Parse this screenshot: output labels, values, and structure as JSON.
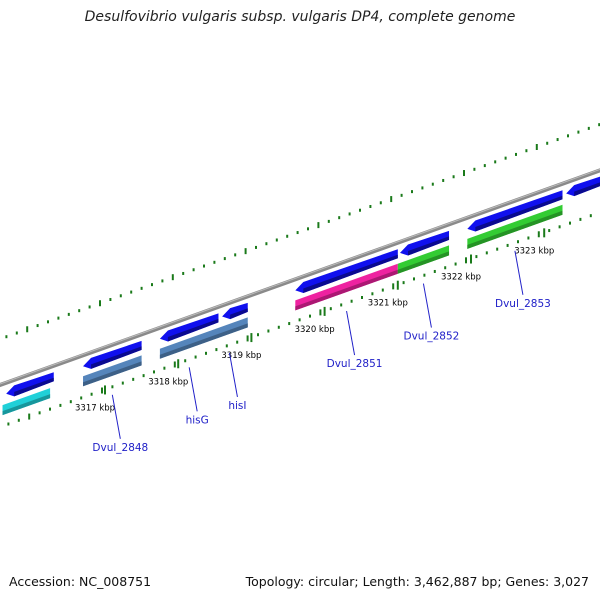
{
  "title": "Desulfovibrio vulgaris subsp. vulgaris DP4, complete genome",
  "footer": {
    "accession": "Accession: NC_008751",
    "summary": "Topology: circular; Length: 3,462,887 bp; Genes: 3,027"
  },
  "colors": {
    "backbone": "#8a8a8a",
    "cds": "#1010ee",
    "tick": "#1a7a1a",
    "label": "#2020c8",
    "feature_cyan": "#20d0d8",
    "feature_steelblue": "#5585bb",
    "feature_magenta": "#ee22a0",
    "feature_green": "#33cc33"
  },
  "kbp_ticks": [
    {
      "kbp": 3317,
      "label": "3317 kbp"
    },
    {
      "kbp": 3318,
      "label": "3318 kbp"
    },
    {
      "kbp": 3319,
      "label": "3319 kbp"
    },
    {
      "kbp": 3320,
      "label": "3320 kbp"
    },
    {
      "kbp": 3321,
      "label": "3321 kbp"
    },
    {
      "kbp": 3322,
      "label": "3322 kbp"
    },
    {
      "kbp": 3323,
      "label": "3323 kbp"
    }
  ],
  "cds_features": [
    {
      "start": 3315.65,
      "end": 3316.3,
      "strand": "-"
    },
    {
      "start": 3316.7,
      "end": 3317.5,
      "strand": "-"
    },
    {
      "start": 3317.75,
      "end": 3318.55,
      "strand": "-"
    },
    {
      "start": 3318.6,
      "end": 3318.95,
      "strand": "-"
    },
    {
      "start": 3319.6,
      "end": 3321.0,
      "strand": "-"
    },
    {
      "start": 3321.03,
      "end": 3321.7,
      "strand": "-"
    },
    {
      "start": 3321.95,
      "end": 3323.25,
      "strand": "-"
    },
    {
      "start": 3323.3,
      "end": 3323.9,
      "strand": "-"
    }
  ],
  "gene_features": [
    {
      "start": 3315.6,
      "end": 3316.25,
      "color": "cyan",
      "label": ""
    },
    {
      "start": 3316.7,
      "end": 3317.5,
      "color": "steelblue",
      "label": "Dvul_2848"
    },
    {
      "start": 3317.75,
      "end": 3318.95,
      "color": "steelblue",
      "label": "hisG"
    },
    {
      "start": 3318.6,
      "end": 3318.95,
      "color": "steelblue",
      "label": "hisI"
    },
    {
      "start": 3319.6,
      "end": 3321.0,
      "color": "magenta",
      "label": "Dvul_2851"
    },
    {
      "start": 3321.0,
      "end": 3321.7,
      "color": "green",
      "label": "Dvul_2852"
    },
    {
      "start": 3321.95,
      "end": 3323.25,
      "color": "green",
      "label": "Dvul_2853"
    }
  ]
}
